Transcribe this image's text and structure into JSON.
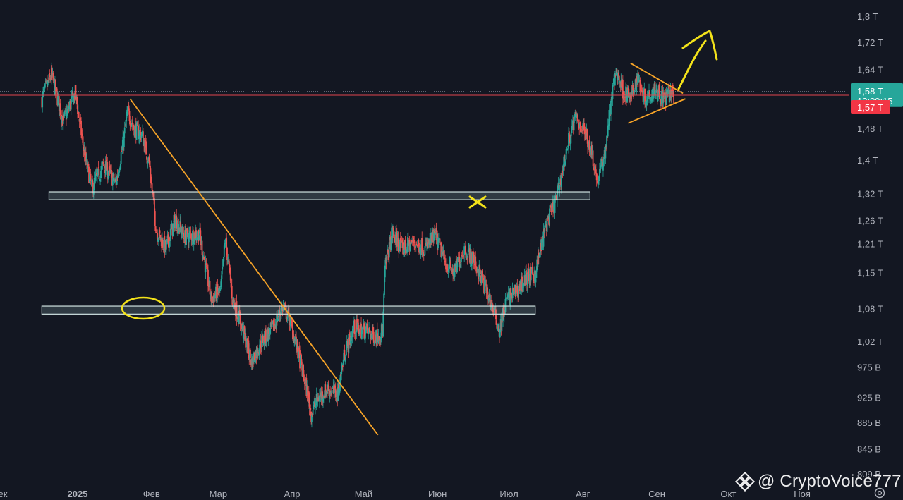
{
  "chart_data": {
    "type": "candlestick",
    "y_scale": "log",
    "currency_suffix": "В / Т",
    "y_ticks": [
      "1,8 Т",
      "1,72 Т",
      "1,64 Т",
      "1,48 Т",
      "1,4 Т",
      "1,32 Т",
      "1,26 Т",
      "1,21 Т",
      "1,15 Т",
      "1,08 Т",
      "1,02 Т",
      "975 В",
      "925 В",
      "885 В",
      "845 В",
      "809 В"
    ],
    "y_tick_values": [
      1800,
      1720,
      1640,
      1480,
      1400,
      1320,
      1260,
      1210,
      1150,
      1080,
      1020,
      975,
      925,
      885,
      845,
      809
    ],
    "x_ticks": [
      "ек",
      "2025",
      "Фев",
      "Мар",
      "Апр",
      "Май",
      "Июн",
      "Июл",
      "Авг",
      "Сен",
      "Окт",
      "Ноя"
    ],
    "x_tick_dates": [
      "2024-12-20",
      "2025-01-01",
      "2025-02-01",
      "2025-03-01",
      "2025-04-01",
      "2025-05-01",
      "2025-06-01",
      "2025-07-01",
      "2025-08-01",
      "2025-09-01",
      "2025-10-01",
      "2025-11-01"
    ],
    "date_range": [
      "2024-12-17",
      "2025-09-08"
    ],
    "y_range": [
      809,
      1800
    ],
    "current_price_label": "1,58 Т",
    "countdown_label": "12:09:15",
    "prev_close_label": "1,57 Т",
    "current_price": 1580,
    "prev_close": 1570,
    "grid": false,
    "support_zones": [
      {
        "from": "2024-12-20",
        "to": "2025-08-04",
        "low": 1308,
        "high": 1326
      },
      {
        "from": "2024-12-17",
        "to": "2025-07-12",
        "low": 1071,
        "high": 1086
      }
    ],
    "trendlines": [
      {
        "p1": [
          "2025-01-23",
          1560
        ],
        "p2": [
          "2025-05-07",
          867
        ],
        "color": "#f7a428"
      },
      {
        "p1": [
          "2025-08-21",
          1660
        ],
        "p2": [
          "2025-09-12",
          1575
        ],
        "color": "#f7a428"
      },
      {
        "p1": [
          "2025-08-20",
          1495
        ],
        "p2": [
          "2025-09-13",
          1560
        ],
        "color": "#f7a428"
      }
    ],
    "annotations": [
      "ellipse at support near 2025-02-01",
      "cross mark near 2025-06-20 at 1,32 Т",
      "upward arrow after triangle"
    ],
    "price_path": [
      [
        "2024-12-17",
        1560
      ],
      [
        "2024-12-21",
        1625
      ],
      [
        "2024-12-26",
        1500
      ],
      [
        "2024-12-31",
        1575
      ],
      [
        "2025-01-04",
        1410
      ],
      [
        "2025-01-07",
        1335
      ],
      [
        "2025-01-12",
        1390
      ],
      [
        "2025-01-17",
        1345
      ],
      [
        "2025-01-20",
        1440
      ],
      [
        "2025-01-22",
        1525
      ],
      [
        "2025-01-25",
        1480
      ],
      [
        "2025-01-28",
        1465
      ],
      [
        "2025-01-31",
        1395
      ],
      [
        "2025-02-03",
        1240
      ],
      [
        "2025-02-07",
        1200
      ],
      [
        "2025-02-11",
        1265
      ],
      [
        "2025-02-15",
        1225
      ],
      [
        "2025-02-21",
        1235
      ],
      [
        "2025-02-26",
        1100
      ],
      [
        "2025-03-02",
        1115
      ],
      [
        "2025-03-04",
        1220
      ],
      [
        "2025-03-07",
        1100
      ],
      [
        "2025-03-10",
        1060
      ],
      [
        "2025-03-15",
        985
      ],
      [
        "2025-03-19",
        1020
      ],
      [
        "2025-03-24",
        1045
      ],
      [
        "2025-03-28",
        1085
      ],
      [
        "2025-03-31",
        1060
      ],
      [
        "2025-04-03",
        1010
      ],
      [
        "2025-04-07",
        940
      ],
      [
        "2025-04-09",
        900
      ],
      [
        "2025-04-12",
        925
      ],
      [
        "2025-04-16",
        940
      ],
      [
        "2025-04-20",
        930
      ],
      [
        "2025-04-23",
        1000
      ],
      [
        "2025-04-27",
        1045
      ],
      [
        "2025-05-02",
        1040
      ],
      [
        "2025-05-06",
        1030
      ],
      [
        "2025-05-09",
        1040
      ],
      [
        "2025-05-10",
        1160
      ],
      [
        "2025-05-13",
        1235
      ],
      [
        "2025-05-17",
        1200
      ],
      [
        "2025-05-22",
        1215
      ],
      [
        "2025-05-27",
        1200
      ],
      [
        "2025-05-31",
        1230
      ],
      [
        "2025-06-04",
        1175
      ],
      [
        "2025-06-08",
        1150
      ],
      [
        "2025-06-12",
        1200
      ],
      [
        "2025-06-16",
        1180
      ],
      [
        "2025-06-20",
        1135
      ],
      [
        "2025-06-24",
        1085
      ],
      [
        "2025-06-27",
        1040
      ],
      [
        "2025-06-30",
        1100
      ],
      [
        "2025-07-04",
        1115
      ],
      [
        "2025-07-08",
        1140
      ],
      [
        "2025-07-12",
        1150
      ],
      [
        "2025-07-17",
        1260
      ],
      [
        "2025-07-21",
        1310
      ],
      [
        "2025-07-26",
        1450
      ],
      [
        "2025-07-29",
        1510
      ],
      [
        "2025-08-02",
        1470
      ],
      [
        "2025-08-05",
        1415
      ],
      [
        "2025-08-07",
        1350
      ],
      [
        "2025-08-10",
        1410
      ],
      [
        "2025-08-13",
        1560
      ],
      [
        "2025-08-15",
        1640
      ],
      [
        "2025-08-18",
        1580
      ],
      [
        "2025-08-21",
        1560
      ],
      [
        "2025-08-24",
        1620
      ],
      [
        "2025-08-27",
        1560
      ],
      [
        "2025-08-31",
        1590
      ],
      [
        "2025-09-04",
        1560
      ],
      [
        "2025-09-08",
        1580
      ]
    ]
  },
  "watermark": {
    "text": "@ CryptoVoice777"
  }
}
